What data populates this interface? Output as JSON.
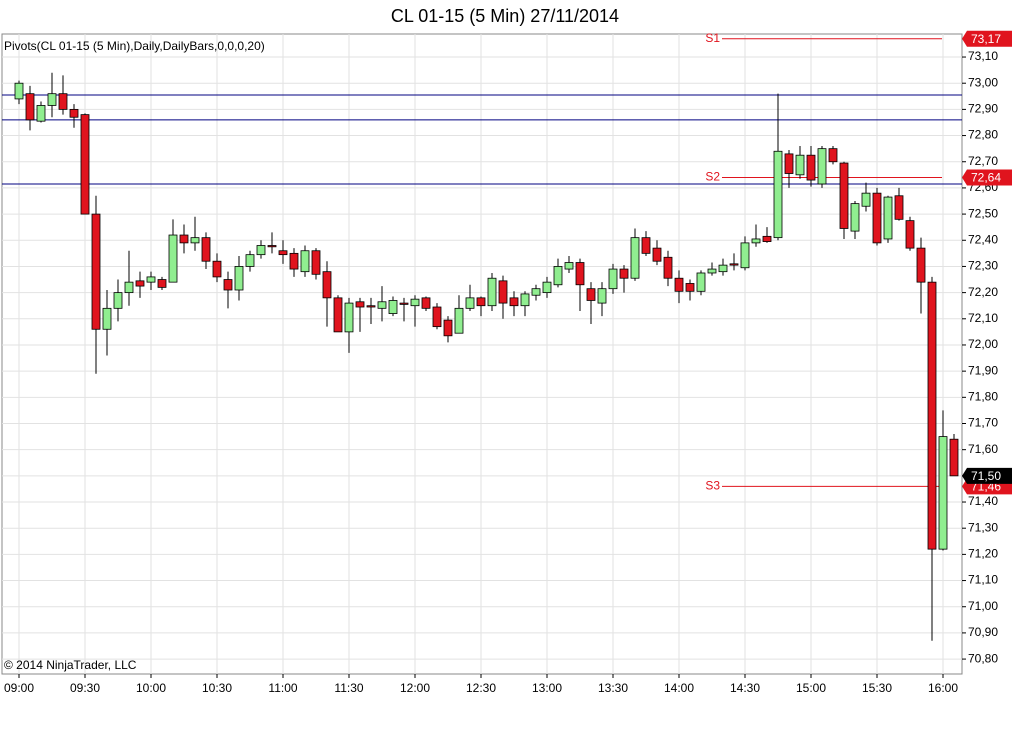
{
  "chart_data": {
    "type": "candlestick",
    "title": "CL 01-15 (5 Min)  27/11/2014",
    "indicator_label": "Pivots(CL 01-15 (5 Min),Daily,DailyBars,0,0,0,20)",
    "copyright": "© 2014 NinjaTrader, LLC",
    "categories": [
      "09:00",
      null,
      null,
      null,
      null,
      null,
      "09:30",
      null,
      null,
      null,
      null,
      null,
      "10:00",
      null,
      null,
      null,
      null,
      null,
      "10:30",
      null,
      null,
      null,
      null,
      null,
      "11:00",
      null,
      null,
      null,
      null,
      null,
      "11:30",
      null,
      null,
      null,
      null,
      null,
      "12:00",
      null,
      null,
      null,
      null,
      null,
      "12:30",
      null,
      null,
      null,
      null,
      null,
      "13:00",
      null,
      null,
      null,
      null,
      null,
      "13:30",
      null,
      null,
      null,
      null,
      null,
      "14:00",
      null,
      null,
      null,
      null,
      null,
      "14:30",
      null,
      null,
      null,
      null,
      null,
      "15:00",
      null,
      null,
      null,
      null,
      null,
      "15:30",
      null,
      null,
      null,
      null,
      null,
      "16:00",
      null
    ],
    "open": [
      72.94,
      72.96,
      72.855,
      72.915,
      72.96,
      72.9,
      72.88,
      72.5,
      72.06,
      72.14,
      72.2,
      72.245,
      72.24,
      72.25,
      72.24,
      72.42,
      72.39,
      72.41,
      72.32,
      72.25,
      72.21,
      72.3,
      72.345,
      72.38,
      72.36,
      72.35,
      72.28,
      72.36,
      72.28,
      72.18,
      72.05,
      72.165,
      72.15,
      72.14,
      72.12,
      72.16,
      72.15,
      72.18,
      72.145,
      72.095,
      72.045,
      72.14,
      72.18,
      72.15,
      72.245,
      72.18,
      72.15,
      72.19,
      72.2,
      72.23,
      72.29,
      72.315,
      72.215,
      72.16,
      72.215,
      72.29,
      72.255,
      72.41,
      72.37,
      72.335,
      72.255,
      72.235,
      72.205,
      72.275,
      72.28,
      72.31,
      72.295,
      72.39,
      72.415,
      72.41,
      72.73,
      72.65,
      72.725,
      72.615,
      72.75,
      72.695,
      72.435,
      72.53,
      72.58,
      72.405,
      72.57,
      72.475,
      72.37,
      72.24,
      71.22,
      71.64
    ],
    "high": [
      73.01,
      72.99,
      72.93,
      73.04,
      73.03,
      72.92,
      72.885,
      72.57,
      72.21,
      72.25,
      72.36,
      72.28,
      72.28,
      72.26,
      72.48,
      72.46,
      72.49,
      72.43,
      72.35,
      72.28,
      72.34,
      72.36,
      72.4,
      72.43,
      72.4,
      72.37,
      72.38,
      72.37,
      72.32,
      72.19,
      72.18,
      72.18,
      72.18,
      72.225,
      72.185,
      72.18,
      72.19,
      72.185,
      72.16,
      72.11,
      72.19,
      72.23,
      72.185,
      72.275,
      72.265,
      72.205,
      72.205,
      72.23,
      72.26,
      72.33,
      72.34,
      72.33,
      72.24,
      72.24,
      72.31,
      72.305,
      72.445,
      72.435,
      72.4,
      72.36,
      72.285,
      72.25,
      72.285,
      72.315,
      72.33,
      72.35,
      72.415,
      72.46,
      72.45,
      72.96,
      72.745,
      72.76,
      72.76,
      72.76,
      72.76,
      72.7,
      72.55,
      72.62,
      72.6,
      72.57,
      72.6,
      72.49,
      72.41,
      72.26,
      71.75,
      71.66
    ],
    "low": [
      72.92,
      72.82,
      72.85,
      72.87,
      72.88,
      72.83,
      72.5,
      71.89,
      71.96,
      72.09,
      72.15,
      72.18,
      72.21,
      72.21,
      72.24,
      72.35,
      72.36,
      72.29,
      72.24,
      72.14,
      72.17,
      72.28,
      72.33,
      72.35,
      72.31,
      72.26,
      72.26,
      72.25,
      72.07,
      72.05,
      71.97,
      72.05,
      72.08,
      72.09,
      72.11,
      72.09,
      72.07,
      72.13,
      72.06,
      72.01,
      72.045,
      72.13,
      72.11,
      72.13,
      72.1,
      72.11,
      72.11,
      72.17,
      72.18,
      72.22,
      72.275,
      72.13,
      72.08,
      72.11,
      72.195,
      72.2,
      72.245,
      72.34,
      72.305,
      72.225,
      72.16,
      72.17,
      72.19,
      72.265,
      72.265,
      72.285,
      72.285,
      72.375,
      72.39,
      72.4,
      72.6,
      72.635,
      72.605,
      72.6,
      72.69,
      72.405,
      72.405,
      72.51,
      72.38,
      72.39,
      72.475,
      72.36,
      72.12,
      70.87,
      71.215,
      71.5
    ],
    "close": [
      73.0,
      72.86,
      72.915,
      72.96,
      72.9,
      72.87,
      72.5,
      72.06,
      72.14,
      72.2,
      72.24,
      72.225,
      72.26,
      72.22,
      72.42,
      72.39,
      72.41,
      72.32,
      72.26,
      72.21,
      72.3,
      72.345,
      72.38,
      72.375,
      72.345,
      72.29,
      72.36,
      72.27,
      72.18,
      72.05,
      72.16,
      72.145,
      72.145,
      72.165,
      72.17,
      72.155,
      72.175,
      72.14,
      72.07,
      72.035,
      72.14,
      72.18,
      72.15,
      72.255,
      72.16,
      72.15,
      72.195,
      72.215,
      72.24,
      72.3,
      72.315,
      72.23,
      72.17,
      72.215,
      72.29,
      72.255,
      72.41,
      72.35,
      72.32,
      72.255,
      72.205,
      72.205,
      72.275,
      72.29,
      72.305,
      72.305,
      72.39,
      72.405,
      72.395,
      72.74,
      72.655,
      72.725,
      72.63,
      72.75,
      72.7,
      72.445,
      72.54,
      72.58,
      72.39,
      72.565,
      72.48,
      72.37,
      72.24,
      71.22,
      71.65,
      71.5
    ],
    "up_color": "#90ee90",
    "down_color": "#e0141e",
    "ylim": [
      70.743,
      73.188
    ],
    "yticks": [
      {
        "value": 70.8,
        "label": "70,80"
      },
      {
        "value": 70.9,
        "label": "70,90"
      },
      {
        "value": 71.0,
        "label": "71,00"
      },
      {
        "value": 71.1,
        "label": "71,10"
      },
      {
        "value": 71.2,
        "label": "71,20"
      },
      {
        "value": 71.3,
        "label": "71,30"
      },
      {
        "value": 71.4,
        "label": "71,40"
      },
      {
        "value": 71.5,
        "label": "71,50"
      },
      {
        "value": 71.6,
        "label": "71,60"
      },
      {
        "value": 71.7,
        "label": "71,70"
      },
      {
        "value": 71.8,
        "label": "71,80"
      },
      {
        "value": 71.9,
        "label": "71,90"
      },
      {
        "value": 72.0,
        "label": "72,00"
      },
      {
        "value": 72.1,
        "label": "72,10"
      },
      {
        "value": 72.2,
        "label": "72,20"
      },
      {
        "value": 72.3,
        "label": "72,30"
      },
      {
        "value": 72.4,
        "label": "72,40"
      },
      {
        "value": 72.5,
        "label": "72,50"
      },
      {
        "value": 72.6,
        "label": "72,60"
      },
      {
        "value": 72.7,
        "label": "72,70"
      },
      {
        "value": 72.8,
        "label": "72,80"
      },
      {
        "value": 72.9,
        "label": "72,90"
      },
      {
        "value": 73.0,
        "label": "73,00"
      },
      {
        "value": 73.1,
        "label": "73,10"
      }
    ],
    "grid": true,
    "reference_lines": [
      72.955,
      72.86,
      72.615
    ],
    "reference_color": "#000080",
    "pivots": [
      {
        "label": "S1",
        "value": 73.17,
        "value_label": "73,17"
      },
      {
        "label": "S2",
        "value": 72.64,
        "value_label": "72,64"
      },
      {
        "label": "S3",
        "value": 71.46,
        "value_label": "71,46"
      }
    ],
    "pivot_color": "#e0141e",
    "last_price": {
      "value": 71.5,
      "label": "71,50"
    }
  }
}
